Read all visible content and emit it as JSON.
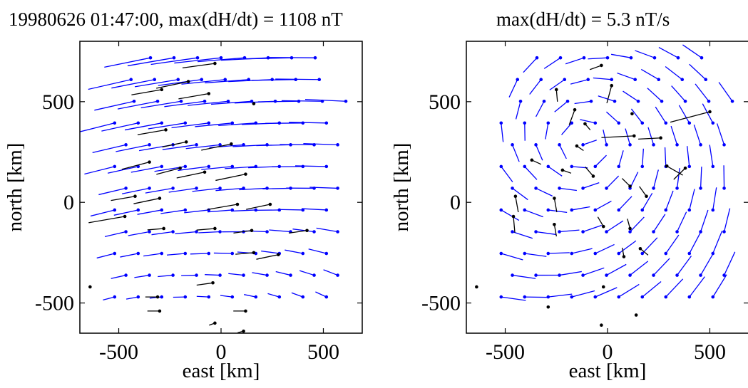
{
  "chart_data": [
    {
      "type": "scatter",
      "subtype": "vector-field",
      "title": "19980626 01:47:00, max(dH/dt) = 1108 nT",
      "xlabel": "east [km]",
      "ylabel": "north [km]",
      "xlim": [
        -690,
        690
      ],
      "ylim": [
        -650,
        800
      ],
      "xticks": [
        -500,
        0,
        500
      ],
      "yticks": [
        -500,
        0,
        500
      ],
      "grid": false,
      "colors": {
        "interpolated": "#0000ff",
        "measured": "#000000"
      },
      "field": {
        "type": "uniform",
        "ang0": 14,
        "curve": -15,
        "len0": 170,
        "lenSlope": -0.16,
        "lenMin": 12
      },
      "measured": [
        [
          -640,
          -420,
          0,
          0
        ],
        [
          -30,
          690,
          160,
          8
        ],
        [
          -160,
          600,
          160,
          12
        ],
        [
          -290,
          560,
          150,
          10
        ],
        [
          -60,
          540,
          150,
          10
        ],
        [
          160,
          490,
          0,
          0
        ],
        [
          -270,
          360,
          140,
          10
        ],
        [
          -170,
          300,
          120,
          12
        ],
        [
          50,
          290,
          150,
          12
        ],
        [
          -350,
          200,
          140,
          15
        ],
        [
          -200,
          170,
          120,
          15
        ],
        [
          -80,
          150,
          140,
          12
        ],
        [
          120,
          140,
          150,
          12
        ],
        [
          -420,
          30,
          120,
          10
        ],
        [
          -300,
          20,
          130,
          12
        ],
        [
          -470,
          -70,
          180,
          10
        ],
        [
          80,
          -10,
          150,
          10
        ],
        [
          240,
          -10,
          120,
          12
        ],
        [
          -280,
          -130,
          80,
          5
        ],
        [
          -30,
          -130,
          90,
          5
        ],
        [
          150,
          -140,
          90,
          8
        ],
        [
          420,
          -140,
          90,
          8
        ],
        [
          280,
          -260,
          110,
          12
        ],
        [
          160,
          -250,
          90,
          5
        ],
        [
          -40,
          -400,
          80,
          8
        ],
        [
          -310,
          -470,
          60,
          0
        ],
        [
          -300,
          -540,
          60,
          0
        ],
        [
          120,
          -540,
          60,
          0
        ],
        [
          -30,
          -600,
          30,
          20
        ],
        [
          110,
          -640,
          30,
          15
        ]
      ]
    },
    {
      "type": "scatter",
      "subtype": "vector-field",
      "title": "max(dH/dt) = 5.3 nT/s",
      "xlabel": "east [km]",
      "ylabel": "north [km]",
      "xlim": [
        -690,
        690
      ],
      "ylim": [
        -650,
        800
      ],
      "xticks": [
        -500,
        0,
        500
      ],
      "yticks": [
        -500,
        0,
        500
      ],
      "grid": false,
      "colors": {
        "interpolated": "#0000ff",
        "measured": "#000000"
      },
      "field": {
        "type": "vortex",
        "cx": -120,
        "cy": 300,
        "rotation": -1,
        "len0": 70,
        "lenSlope": 0.06,
        "lenMax": 160
      },
      "measured": [
        [
          -640,
          -420,
          0,
          0
        ],
        [
          -460,
          -70,
          80,
          95
        ],
        [
          -450,
          30,
          80,
          100
        ],
        [
          -370,
          210,
          50,
          155
        ],
        [
          -220,
          160,
          45,
          160
        ],
        [
          -150,
          280,
          40,
          145
        ],
        [
          -110,
          390,
          40,
          130
        ],
        [
          -160,
          460,
          80,
          70
        ],
        [
          -30,
          680,
          60,
          20
        ],
        [
          20,
          580,
          90,
          75
        ],
        [
          -250,
          560,
          60,
          95
        ],
        [
          120,
          440,
          0,
          0
        ],
        [
          130,
          330,
          160,
          3
        ],
        [
          260,
          320,
          110,
          3
        ],
        [
          500,
          450,
          200,
          15
        ],
        [
          290,
          180,
          90,
          150
        ],
        [
          380,
          170,
          80,
          45
        ],
        [
          -70,
          130,
          60,
          -50
        ],
        [
          110,
          80,
          55,
          -45
        ],
        [
          190,
          30,
          60,
          -55
        ],
        [
          -260,
          20,
          70,
          100
        ],
        [
          -260,
          -110,
          60,
          100
        ],
        [
          -20,
          -120,
          55,
          -60
        ],
        [
          110,
          -130,
          50,
          -75
        ],
        [
          160,
          -230,
          50,
          140
        ],
        [
          -20,
          -420,
          0,
          0
        ],
        [
          80,
          -270,
          45,
          -80
        ],
        [
          -290,
          -520,
          0,
          0
        ],
        [
          140,
          -560,
          0,
          0
        ],
        [
          -30,
          -610,
          0,
          0
        ]
      ]
    }
  ]
}
